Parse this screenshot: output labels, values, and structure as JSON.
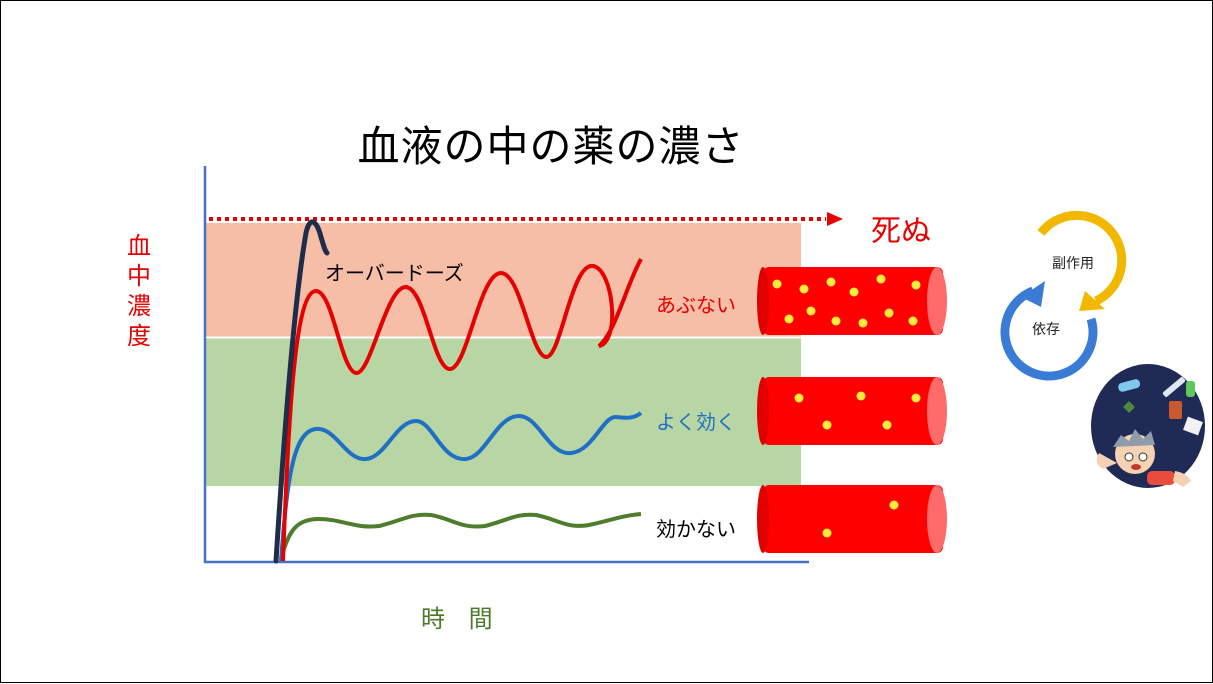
{
  "title": "血液の中の薬の濃さ",
  "y_axis_label": [
    "血",
    "中",
    "濃",
    "度"
  ],
  "x_axis_label": "時 間",
  "death_label": "死ぬ",
  "overdose_label": "オーバードーズ",
  "zones": {
    "danger": {
      "label": "あぶない",
      "color": "#f4b8a0"
    },
    "effective": {
      "label": "よく効く",
      "color": "#b2d39c"
    },
    "ineffective": {
      "label": "効かない",
      "color": "#ffffff"
    }
  },
  "cycle": {
    "side_effect": "副作用",
    "dependence": "依存"
  },
  "colors": {
    "axis": "#4472c4",
    "death_line": "#e60000",
    "overdose_curve": "#1f2d4a",
    "danger_curve": "#e60000",
    "effective_curve": "#1f6fc4",
    "ineffective_curve": "#4e7d2e",
    "vessel": "#ff0000",
    "particle": "#ffeb3b"
  }
}
